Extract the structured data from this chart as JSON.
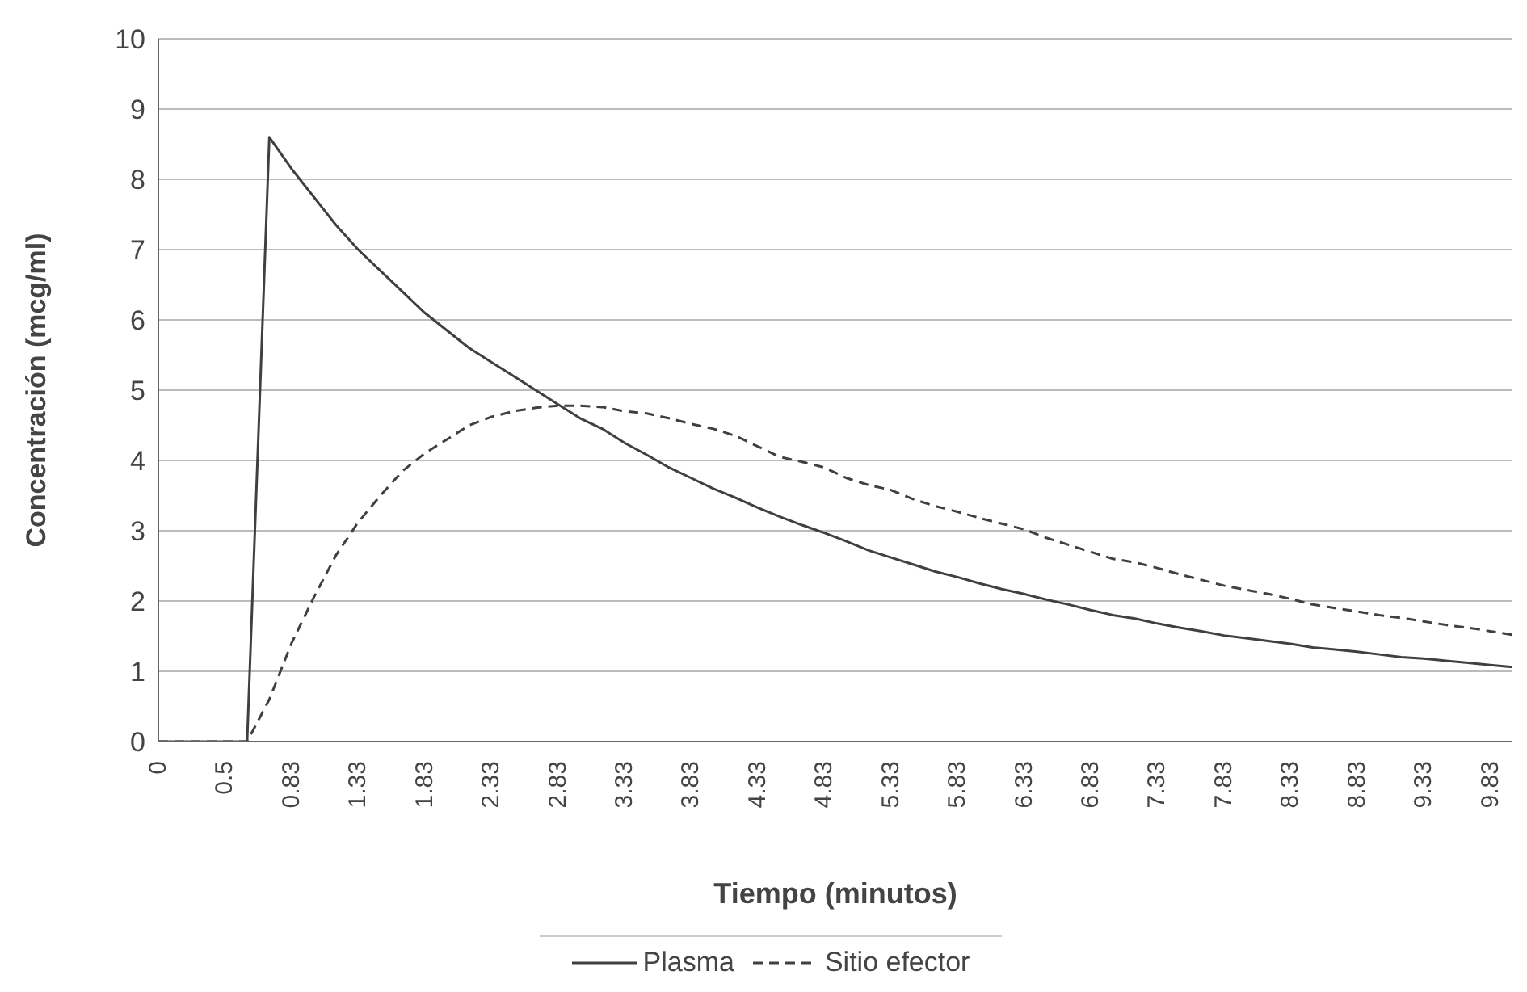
{
  "chart_data": {
    "type": "line",
    "xlabel": "Tiempo (minutos)",
    "ylabel": "Concentración (mcg/ml)",
    "categories": [
      "0",
      null,
      null,
      "0.5",
      null,
      null,
      "0.83",
      null,
      null,
      "1.33",
      null,
      null,
      "1.83",
      null,
      null,
      "2.33",
      null,
      null,
      "2.83",
      null,
      null,
      "3.33",
      null,
      null,
      "3.83",
      null,
      null,
      "4.33",
      null,
      null,
      "4.83",
      null,
      null,
      "5.33",
      null,
      null,
      "5.83",
      null,
      null,
      "6.33",
      null,
      null,
      "6.83",
      null,
      null,
      "7.33",
      null,
      null,
      "7.83",
      null,
      null,
      "8.33",
      null,
      null,
      "8.83",
      null,
      null,
      "9.33",
      null,
      null,
      "9.83",
      null
    ],
    "series": [
      {
        "name": "Plasma",
        "color": "#404040",
        "line_style": "solid",
        "values": [
          0,
          0,
          0,
          0,
          0,
          8.6,
          8.15,
          7.75,
          7.35,
          7.0,
          6.7,
          6.4,
          6.1,
          5.85,
          5.6,
          5.4,
          5.2,
          5.0,
          4.8,
          4.6,
          4.45,
          4.25,
          4.08,
          3.9,
          3.75,
          3.6,
          3.47,
          3.33,
          3.2,
          3.08,
          2.97,
          2.85,
          2.72,
          2.62,
          2.52,
          2.42,
          2.34,
          2.25,
          2.17,
          2.1,
          2.02,
          1.95,
          1.87,
          1.8,
          1.75,
          1.68,
          1.62,
          1.57,
          1.51,
          1.47,
          1.43,
          1.39,
          1.34,
          1.31,
          1.28,
          1.24,
          1.2,
          1.18,
          1.15,
          1.12,
          1.09,
          1.06
        ]
      },
      {
        "name": "Sitio efector",
        "color": "#404040",
        "line_style": "dashed",
        "values": [
          0,
          0,
          0,
          0,
          0,
          0.6,
          1.4,
          2.05,
          2.65,
          3.12,
          3.5,
          3.85,
          4.1,
          4.3,
          4.5,
          4.62,
          4.7,
          4.75,
          4.78,
          4.78,
          4.76,
          4.7,
          4.67,
          4.6,
          4.52,
          4.45,
          4.35,
          4.2,
          4.05,
          3.98,
          3.9,
          3.75,
          3.65,
          3.58,
          3.45,
          3.35,
          3.27,
          3.18,
          3.1,
          3.02,
          2.9,
          2.8,
          2.7,
          2.6,
          2.55,
          2.47,
          2.38,
          2.3,
          2.22,
          2.16,
          2.1,
          2.03,
          1.95,
          1.9,
          1.85,
          1.8,
          1.76,
          1.71,
          1.66,
          1.62,
          1.57,
          1.52
        ]
      }
    ],
    "ylim": [
      0,
      10
    ],
    "yticks": [
      0,
      1,
      2,
      3,
      4,
      5,
      6,
      7,
      8,
      9,
      10
    ],
    "grid": "y",
    "legend": "bottom",
    "marker": "none"
  }
}
